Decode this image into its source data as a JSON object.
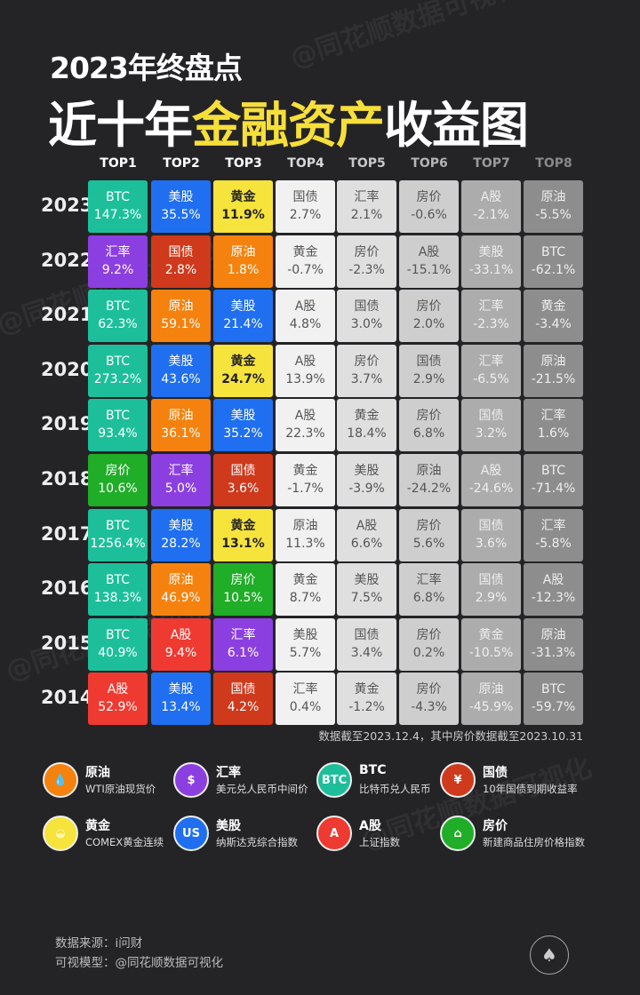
{
  "title": {
    "line1": "2023年终盘点",
    "line2_a": "近十年",
    "line2_b": "金融资产",
    "line2_c": "收益图"
  },
  "watermark": "@同花顺数据可视化",
  "chart_data": {
    "type": "table",
    "columns": [
      "TOP1",
      "TOP2",
      "TOP3",
      "TOP4",
      "TOP5",
      "TOP6",
      "TOP7",
      "TOP8"
    ],
    "rows": [
      {
        "year": "2023",
        "cells": [
          [
            "BTC",
            "147.3%"
          ],
          [
            "美股",
            "35.5%"
          ],
          [
            "黄金",
            "11.9%"
          ],
          [
            "国债",
            "2.7%"
          ],
          [
            "汇率",
            "2.1%"
          ],
          [
            "房价",
            "-0.6%"
          ],
          [
            "A股",
            "-2.1%"
          ],
          [
            "原油",
            "-5.5%"
          ]
        ]
      },
      {
        "year": "2022",
        "cells": [
          [
            "汇率",
            "9.2%"
          ],
          [
            "国债",
            "2.8%"
          ],
          [
            "原油",
            "1.8%"
          ],
          [
            "黄金",
            "-0.7%"
          ],
          [
            "房价",
            "-2.3%"
          ],
          [
            "A股",
            "-15.1%"
          ],
          [
            "美股",
            "-33.1%"
          ],
          [
            "BTC",
            "-62.1%"
          ]
        ]
      },
      {
        "year": "2021",
        "cells": [
          [
            "BTC",
            "62.3%"
          ],
          [
            "原油",
            "59.1%"
          ],
          [
            "美股",
            "21.4%"
          ],
          [
            "A股",
            "4.8%"
          ],
          [
            "国债",
            "3.0%"
          ],
          [
            "房价",
            "2.0%"
          ],
          [
            "汇率",
            "-2.3%"
          ],
          [
            "黄金",
            "-3.4%"
          ]
        ]
      },
      {
        "year": "2020",
        "cells": [
          [
            "BTC",
            "273.2%"
          ],
          [
            "美股",
            "43.6%"
          ],
          [
            "黄金",
            "24.7%"
          ],
          [
            "A股",
            "13.9%"
          ],
          [
            "房价",
            "3.7%"
          ],
          [
            "国债",
            "2.9%"
          ],
          [
            "汇率",
            "-6.5%"
          ],
          [
            "原油",
            "-21.5%"
          ]
        ]
      },
      {
        "year": "2019",
        "cells": [
          [
            "BTC",
            "93.4%"
          ],
          [
            "原油",
            "36.1%"
          ],
          [
            "美股",
            "35.2%"
          ],
          [
            "A股",
            "22.3%"
          ],
          [
            "黄金",
            "18.4%"
          ],
          [
            "房价",
            "6.8%"
          ],
          [
            "国债",
            "3.2%"
          ],
          [
            "汇率",
            "1.6%"
          ]
        ]
      },
      {
        "year": "2018",
        "cells": [
          [
            "房价",
            "10.6%"
          ],
          [
            "汇率",
            "5.0%"
          ],
          [
            "国债",
            "3.6%"
          ],
          [
            "黄金",
            "-1.7%"
          ],
          [
            "美股",
            "-3.9%"
          ],
          [
            "原油",
            "-24.2%"
          ],
          [
            "A股",
            "-24.6%"
          ],
          [
            "BTC",
            "-71.4%"
          ]
        ]
      },
      {
        "year": "2017",
        "cells": [
          [
            "BTC",
            "1256.4%"
          ],
          [
            "美股",
            "28.2%"
          ],
          [
            "黄金",
            "13.1%"
          ],
          [
            "原油",
            "11.3%"
          ],
          [
            "A股",
            "6.6%"
          ],
          [
            "房价",
            "5.6%"
          ],
          [
            "国债",
            "3.6%"
          ],
          [
            "汇率",
            "-5.8%"
          ]
        ]
      },
      {
        "year": "2016",
        "cells": [
          [
            "BTC",
            "138.3%"
          ],
          [
            "原油",
            "46.9%"
          ],
          [
            "房价",
            "10.5%"
          ],
          [
            "黄金",
            "8.7%"
          ],
          [
            "美股",
            "7.5%"
          ],
          [
            "汇率",
            "6.8%"
          ],
          [
            "国债",
            "2.9%"
          ],
          [
            "A股",
            "-12.3%"
          ]
        ]
      },
      {
        "year": "2015",
        "cells": [
          [
            "BTC",
            "40.9%"
          ],
          [
            "A股",
            "9.4%"
          ],
          [
            "汇率",
            "6.1%"
          ],
          [
            "美股",
            "5.7%"
          ],
          [
            "国债",
            "3.4%"
          ],
          [
            "房价",
            "0.2%"
          ],
          [
            "黄金",
            "-10.5%"
          ],
          [
            "原油",
            "-31.3%"
          ]
        ]
      },
      {
        "year": "2014",
        "cells": [
          [
            "A股",
            "52.9%"
          ],
          [
            "美股",
            "13.4%"
          ],
          [
            "国债",
            "4.2%"
          ],
          [
            "汇率",
            "0.4%"
          ],
          [
            "黄金",
            "-1.2%"
          ],
          [
            "房价",
            "-4.3%"
          ],
          [
            "原油",
            "-45.9%"
          ],
          [
            "BTC",
            "-59.7%"
          ]
        ]
      }
    ],
    "asset_colors": {
      "BTC": "#1dbf9b",
      "美股": "#1f6ff0",
      "黄金": "#f6e33c",
      "原油": "#f5820e",
      "国债": "#cf3a1c",
      "汇率": "#8c3fe0",
      "房价": "#20ad28",
      "A股": "#ef3a31"
    },
    "rank_gray_colors": [
      "#f1f1f1",
      "#e0dfe0",
      "#cfcecf",
      "#adacad",
      "#8e8d8e"
    ],
    "header_colors": [
      "#ffffff",
      "#ffffff",
      "#ffffff",
      "#d8d8d8",
      "#c8c8c8",
      "#b4b4b4",
      "#9a9a9a",
      "#888888"
    ]
  },
  "note": "数据截至2023.12.4，其中房价数据截至2023.10.31",
  "legend": [
    {
      "name": "原油",
      "desc": "WTI原油现货价",
      "icon": "oil-drop-icon",
      "glyph": "💧",
      "color": "#f5820e"
    },
    {
      "name": "汇率",
      "desc": "美元兑人民币中间价",
      "icon": "dollar-exchange-icon",
      "glyph": "$",
      "color": "#8c3fe0"
    },
    {
      "name": "BTC",
      "desc": "比特币兑人民币",
      "icon": "btc-icon",
      "glyph": "BTC",
      "color": "#1dbf9b"
    },
    {
      "name": "国债",
      "desc": "10年国债到期收益率",
      "icon": "yuan-bond-icon",
      "glyph": "¥",
      "color": "#cf3a1c"
    },
    {
      "name": "黄金",
      "desc": "COMEX黄金连续",
      "icon": "gold-ingot-icon",
      "glyph": "◒",
      "color": "#f6e33c"
    },
    {
      "name": "美股",
      "desc": "纳斯达克综合指数",
      "icon": "us-flag-icon",
      "glyph": "US",
      "color": "#1f6ff0"
    },
    {
      "name": "A股",
      "desc": "上证指数",
      "icon": "a-share-icon",
      "glyph": "A",
      "color": "#ef3a31"
    },
    {
      "name": "房价",
      "desc": "新建商品住房价格指数",
      "icon": "house-icon",
      "glyph": "⌂",
      "color": "#20ad28"
    }
  ],
  "footer": {
    "source": "数据来源：i问财",
    "model": "可视模型：@同花顺数据可视化"
  }
}
